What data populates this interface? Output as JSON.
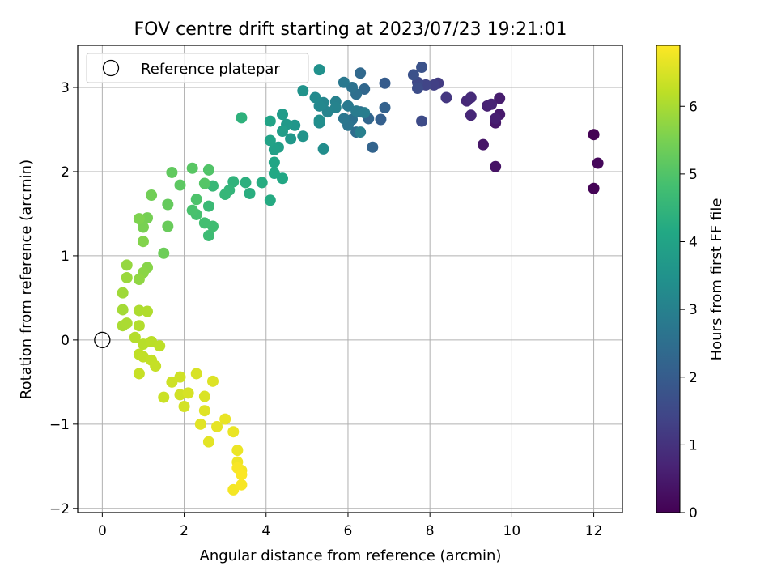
{
  "chart_data": {
    "type": "scatter",
    "title": "FOV centre drift starting at 2023/07/23 19:21:01",
    "xlabel": "Angular distance from reference (arcmin)",
    "ylabel": "Rotation from reference (arcmin)",
    "xlim": [
      -0.6,
      12.7
    ],
    "ylim": [
      -2.05,
      3.5
    ],
    "xticks": [
      0,
      2,
      4,
      6,
      8,
      10,
      12
    ],
    "yticks": [
      -2,
      -1,
      0,
      1,
      2,
      3
    ],
    "grid": true,
    "legend": {
      "placement": "top-left",
      "entries": [
        "Reference platepar"
      ]
    },
    "reference_point": {
      "x": 0,
      "y": 0,
      "label": "Reference platepar"
    },
    "colorbar": {
      "label": "Hours from first FF file",
      "range": [
        0,
        6.9
      ],
      "ticks": [
        0,
        1,
        2,
        3,
        4,
        5,
        6
      ],
      "colormap": "viridis"
    },
    "series": [
      {
        "note_fields": [
          "x",
          "y",
          "hours"
        ],
        "points": [
          [
            12.0,
            2.44,
            0.0
          ],
          [
            12.0,
            1.8,
            0.05
          ],
          [
            12.1,
            2.1,
            0.12
          ],
          [
            9.6,
            2.06,
            0.35
          ],
          [
            9.3,
            2.32,
            0.4
          ],
          [
            9.6,
            2.58,
            0.45
          ],
          [
            9.7,
            2.68,
            0.5
          ],
          [
            9.7,
            2.87,
            0.55
          ],
          [
            9.6,
            2.63,
            0.6
          ],
          [
            9.4,
            2.78,
            0.65
          ],
          [
            9.5,
            2.8,
            0.7
          ],
          [
            9.0,
            2.67,
            0.75
          ],
          [
            8.9,
            2.84,
            0.8
          ],
          [
            9.0,
            2.88,
            0.85
          ],
          [
            8.4,
            2.88,
            1.1
          ],
          [
            8.2,
            3.05,
            1.2
          ],
          [
            8.1,
            3.03,
            1.3
          ],
          [
            7.9,
            3.03,
            1.4
          ],
          [
            7.7,
            3.06,
            1.5
          ],
          [
            7.8,
            2.6,
            1.55
          ],
          [
            7.7,
            2.99,
            1.6
          ],
          [
            7.6,
            3.15,
            1.7
          ],
          [
            7.8,
            3.24,
            1.75
          ],
          [
            6.9,
            3.05,
            2.0
          ],
          [
            6.8,
            2.62,
            2.1
          ],
          [
            6.9,
            2.76,
            2.15
          ],
          [
            6.6,
            2.29,
            2.2
          ],
          [
            6.5,
            2.63,
            2.25
          ],
          [
            6.4,
            2.98,
            2.3
          ],
          [
            6.3,
            3.17,
            2.35
          ],
          [
            6.3,
            2.71,
            2.4
          ],
          [
            6.2,
            2.47,
            2.45
          ],
          [
            6.2,
            2.92,
            2.5
          ],
          [
            6.1,
            2.62,
            2.55
          ],
          [
            6.1,
            3.0,
            2.6
          ],
          [
            6.0,
            2.55,
            2.65
          ],
          [
            5.9,
            2.63,
            2.7
          ],
          [
            5.9,
            3.06,
            2.75
          ],
          [
            6.0,
            2.78,
            2.8
          ],
          [
            6.2,
            2.72,
            2.85
          ],
          [
            6.4,
            2.7,
            2.9
          ],
          [
            6.3,
            2.47,
            2.95
          ],
          [
            5.7,
            2.83,
            3.0
          ],
          [
            5.7,
            2.76,
            3.05
          ],
          [
            5.5,
            2.71,
            3.1
          ],
          [
            5.4,
            2.82,
            3.15
          ],
          [
            5.3,
            2.78,
            3.2
          ],
          [
            5.2,
            2.88,
            3.25
          ],
          [
            5.3,
            2.58,
            3.3
          ],
          [
            5.4,
            2.27,
            3.35
          ],
          [
            5.3,
            2.61,
            3.4
          ],
          [
            5.3,
            3.21,
            3.45
          ],
          [
            4.9,
            2.96,
            3.5
          ],
          [
            4.9,
            2.42,
            3.55
          ],
          [
            4.7,
            2.55,
            3.6
          ],
          [
            4.6,
            2.39,
            3.65
          ],
          [
            4.5,
            2.56,
            3.7
          ],
          [
            4.4,
            2.68,
            3.75
          ],
          [
            4.4,
            2.48,
            3.8
          ],
          [
            4.3,
            2.29,
            3.85
          ],
          [
            4.2,
            2.26,
            3.9
          ],
          [
            4.1,
            2.37,
            3.95
          ],
          [
            4.1,
            2.6,
            4.0
          ],
          [
            4.2,
            2.11,
            4.05
          ],
          [
            4.4,
            1.92,
            4.1
          ],
          [
            4.2,
            1.98,
            4.15
          ],
          [
            4.1,
            1.66,
            4.2
          ],
          [
            3.9,
            1.87,
            4.25
          ],
          [
            3.6,
            1.74,
            4.3
          ],
          [
            3.5,
            1.87,
            4.35
          ],
          [
            3.4,
            2.64,
            4.4
          ],
          [
            3.2,
            1.88,
            4.45
          ],
          [
            3.1,
            1.78,
            4.5
          ],
          [
            3.0,
            1.73,
            4.55
          ],
          [
            2.7,
            1.83,
            4.6
          ],
          [
            2.6,
            1.59,
            4.65
          ],
          [
            2.6,
            1.24,
            4.7
          ],
          [
            2.7,
            1.35,
            4.75
          ],
          [
            2.5,
            1.39,
            4.8
          ],
          [
            2.3,
            1.49,
            4.85
          ],
          [
            2.2,
            1.54,
            4.9
          ],
          [
            2.3,
            1.67,
            4.95
          ],
          [
            2.6,
            2.02,
            5.0
          ],
          [
            2.5,
            1.86,
            5.05
          ],
          [
            2.2,
            2.04,
            5.1
          ],
          [
            1.9,
            1.84,
            5.15
          ],
          [
            1.7,
            1.99,
            5.2
          ],
          [
            1.6,
            1.61,
            5.25
          ],
          [
            1.6,
            1.35,
            5.3
          ],
          [
            1.5,
            1.03,
            5.35
          ],
          [
            1.2,
            1.72,
            5.4
          ],
          [
            1.1,
            1.45,
            5.45
          ],
          [
            1.0,
            1.34,
            5.5
          ],
          [
            0.9,
            1.44,
            5.55
          ],
          [
            1.0,
            1.17,
            5.6
          ],
          [
            1.1,
            0.86,
            5.65
          ],
          [
            1.0,
            0.8,
            5.7
          ],
          [
            0.9,
            0.72,
            5.75
          ],
          [
            0.6,
            0.89,
            5.8
          ],
          [
            0.6,
            0.74,
            5.85
          ],
          [
            0.5,
            0.56,
            5.9
          ],
          [
            0.5,
            0.36,
            5.95
          ],
          [
            0.5,
            0.17,
            6.0
          ],
          [
            0.6,
            0.2,
            6.02
          ],
          [
            0.9,
            0.35,
            6.05
          ],
          [
            1.1,
            0.34,
            6.08
          ],
          [
            0.9,
            0.17,
            6.1
          ],
          [
            0.8,
            0.03,
            6.12
          ],
          [
            1.0,
            -0.05,
            6.15
          ],
          [
            1.2,
            -0.02,
            6.18
          ],
          [
            1.4,
            -0.07,
            6.2
          ],
          [
            0.9,
            -0.17,
            6.22
          ],
          [
            1.0,
            -0.2,
            6.25
          ],
          [
            1.2,
            -0.24,
            6.28
          ],
          [
            1.3,
            -0.31,
            6.3
          ],
          [
            0.9,
            -0.4,
            6.32
          ],
          [
            1.5,
            -0.68,
            6.35
          ],
          [
            1.7,
            -0.5,
            6.38
          ],
          [
            1.9,
            -0.44,
            6.4
          ],
          [
            1.9,
            -0.65,
            6.42
          ],
          [
            2.0,
            -0.79,
            6.45
          ],
          [
            2.1,
            -0.63,
            6.48
          ],
          [
            2.3,
            -0.4,
            6.5
          ],
          [
            2.5,
            -0.67,
            6.52
          ],
          [
            2.7,
            -0.49,
            6.55
          ],
          [
            2.5,
            -0.84,
            6.58
          ],
          [
            2.4,
            -1.0,
            6.6
          ],
          [
            2.6,
            -1.21,
            6.62
          ],
          [
            2.8,
            -1.03,
            6.65
          ],
          [
            3.0,
            -0.94,
            6.68
          ],
          [
            3.2,
            -1.09,
            6.7
          ],
          [
            3.3,
            -1.31,
            6.72
          ],
          [
            3.3,
            -1.45,
            6.75
          ],
          [
            3.4,
            -1.55,
            6.78
          ],
          [
            3.2,
            -1.78,
            6.8
          ],
          [
            3.4,
            -1.72,
            6.83
          ],
          [
            3.3,
            -1.52,
            6.85
          ],
          [
            3.4,
            -1.6,
            6.88
          ]
        ]
      }
    ]
  }
}
